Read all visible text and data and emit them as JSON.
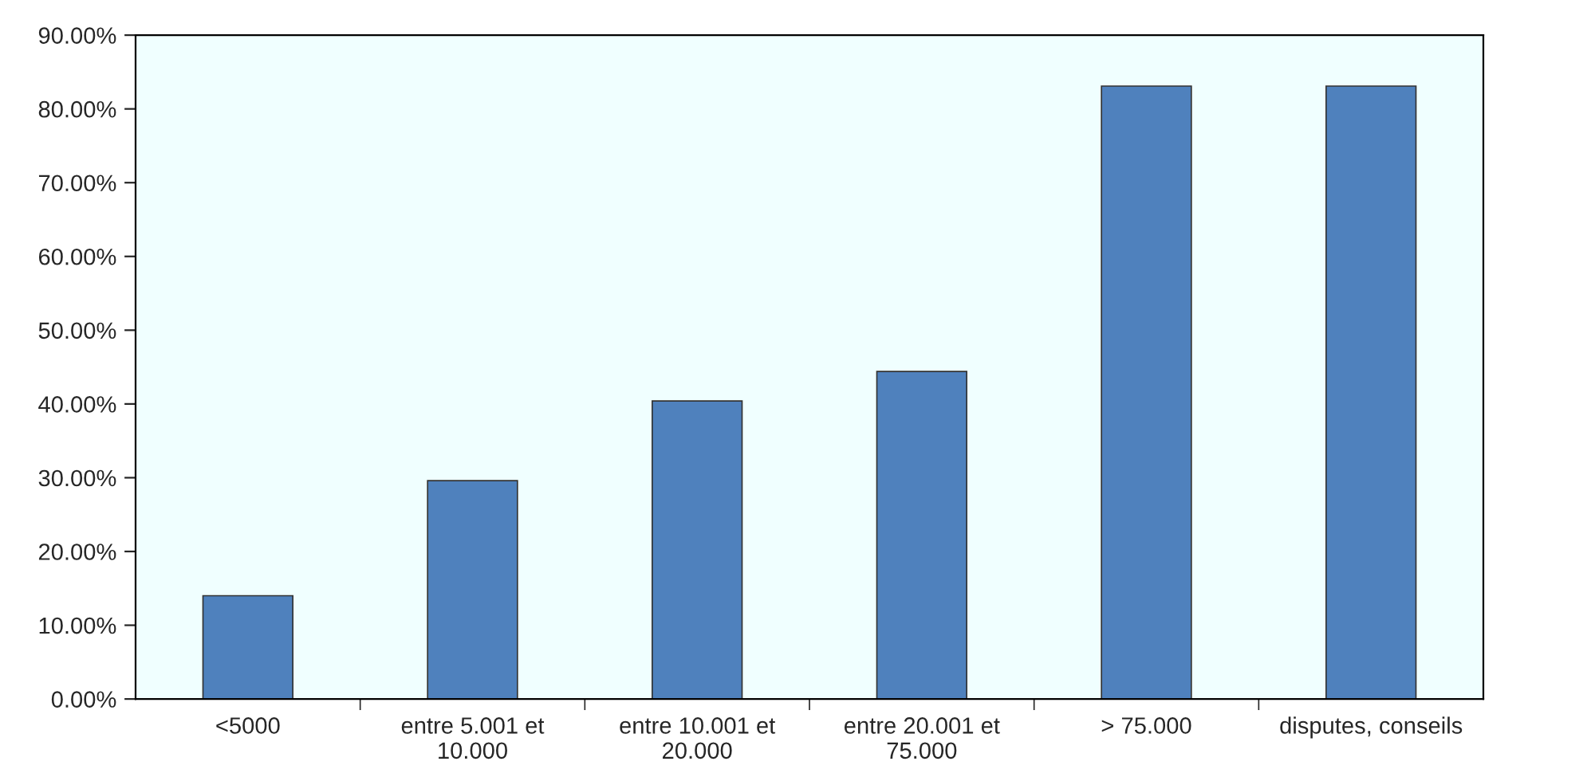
{
  "chart_data": {
    "type": "bar",
    "categories": [
      "<5000",
      "entre 5.001 et\n10.000",
      "entre 10.001 et\n20.000",
      "entre 20.001 et\n75.000",
      "> 75.000",
      "disputes, conseils"
    ],
    "values": [
      14.0,
      29.6,
      40.4,
      44.4,
      83.1,
      83.1
    ],
    "color": "#4f81bd",
    "ylim": [
      0,
      90
    ],
    "yticks": [
      {
        "value": 0,
        "label": "0.00%"
      },
      {
        "value": 10,
        "label": "10.00%"
      },
      {
        "value": 20,
        "label": "20.00%"
      },
      {
        "value": 30,
        "label": "30.00%"
      },
      {
        "value": 40,
        "label": "40.00%"
      },
      {
        "value": 50,
        "label": "50.00%"
      },
      {
        "value": 60,
        "label": "60.00%"
      },
      {
        "value": 70,
        "label": "70.00%"
      },
      {
        "value": 80,
        "label": "80.00%"
      },
      {
        "value": 90,
        "label": "90.00%"
      }
    ],
    "grid": false,
    "legend": false
  }
}
